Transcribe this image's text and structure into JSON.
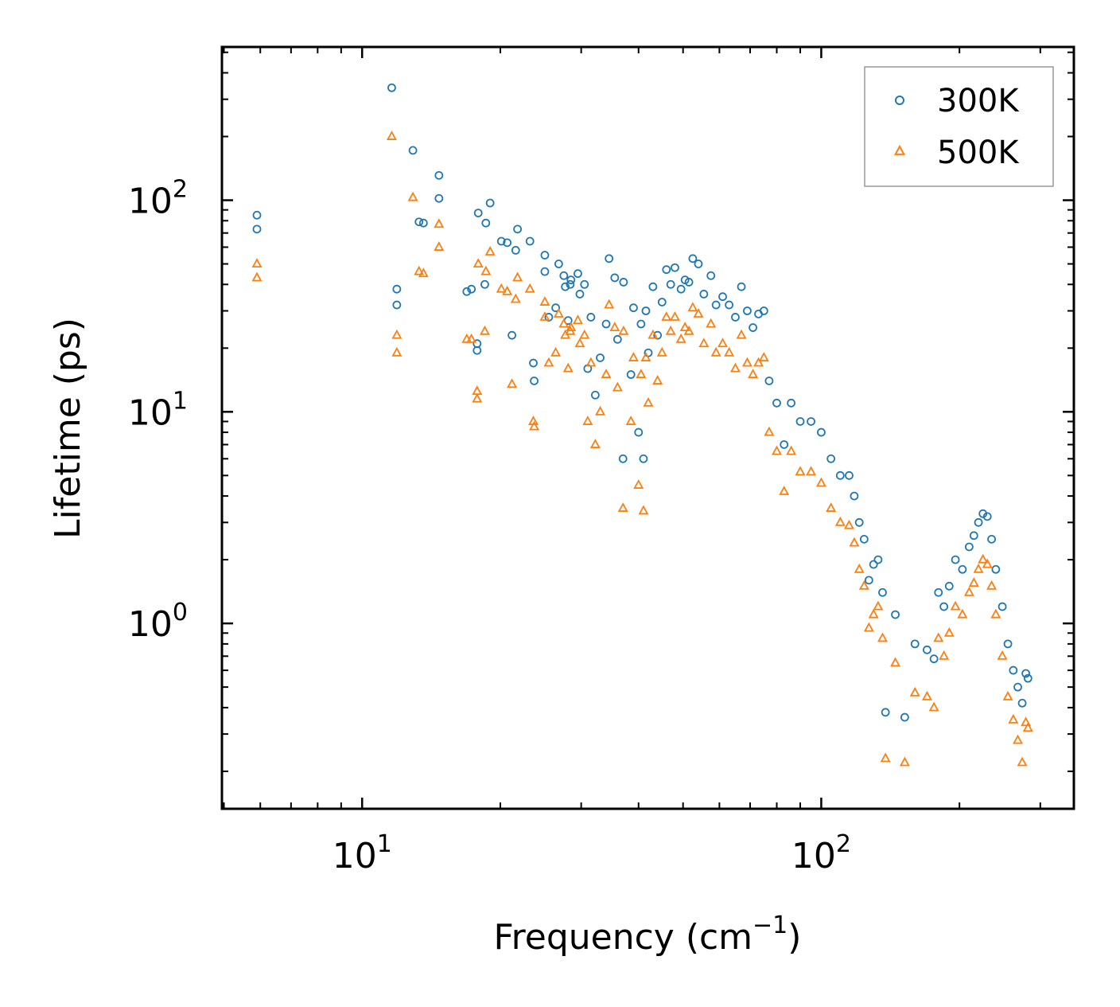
{
  "chart_data": {
    "type": "scatter",
    "title": "",
    "xlabel": "Frequency (cm",
    "xlabel_sup": "−1",
    "xlabel_close": ")",
    "ylabel": "Lifetime (ps)",
    "xscale": "log",
    "yscale": "log",
    "xlim": [
      4.95,
      355
    ],
    "ylim": [
      0.133,
      530
    ],
    "xticks": [
      {
        "base": "10",
        "exp": "1",
        "value": 10
      },
      {
        "base": "10",
        "exp": "2",
        "value": 100
      }
    ],
    "yticks": [
      {
        "base": "10",
        "exp": "0",
        "value": 1
      },
      {
        "base": "10",
        "exp": "1",
        "value": 10
      },
      {
        "base": "10",
        "exp": "2",
        "value": 100
      }
    ],
    "legend_position": "top-right",
    "series": [
      {
        "name": "300K",
        "marker": "circle",
        "color": "#1f77b4",
        "points": [
          [
            5.9,
            85
          ],
          [
            5.9,
            73
          ],
          [
            11.6,
            340
          ],
          [
            11.9,
            38
          ],
          [
            11.9,
            32
          ],
          [
            12.9,
            172
          ],
          [
            13.3,
            79
          ],
          [
            13.6,
            78
          ],
          [
            14.7,
            131
          ],
          [
            14.7,
            102
          ],
          [
            16.9,
            37
          ],
          [
            17.3,
            38
          ],
          [
            17.8,
            21
          ],
          [
            17.8,
            19.5
          ],
          [
            17.9,
            87
          ],
          [
            18.5,
            40
          ],
          [
            18.6,
            78
          ],
          [
            19.0,
            97
          ],
          [
            20.1,
            64
          ],
          [
            20.7,
            63
          ],
          [
            21.2,
            23
          ],
          [
            21.6,
            58
          ],
          [
            21.8,
            73
          ],
          [
            23.2,
            64
          ],
          [
            23.6,
            17
          ],
          [
            23.7,
            14
          ],
          [
            25.0,
            55
          ],
          [
            25.0,
            46
          ],
          [
            25.5,
            28
          ],
          [
            26.4,
            31
          ],
          [
            26.8,
            50
          ],
          [
            27.5,
            44
          ],
          [
            27.7,
            39
          ],
          [
            28.1,
            27
          ],
          [
            28.4,
            40
          ],
          [
            28.5,
            42
          ],
          [
            29.5,
            45
          ],
          [
            29.8,
            36
          ],
          [
            30.5,
            40
          ],
          [
            31.0,
            16
          ],
          [
            31.5,
            28
          ],
          [
            32.2,
            12
          ],
          [
            33.0,
            18
          ],
          [
            34.0,
            26
          ],
          [
            34.5,
            53
          ],
          [
            35.5,
            43
          ],
          [
            36.0,
            22
          ],
          [
            37.1,
            41
          ],
          [
            37.0,
            6
          ],
          [
            38.5,
            15
          ],
          [
            39.0,
            31
          ],
          [
            40.0,
            8
          ],
          [
            40.5,
            26
          ],
          [
            41.0,
            6
          ],
          [
            41.5,
            30
          ],
          [
            42.0,
            19
          ],
          [
            43.0,
            39
          ],
          [
            44.0,
            23
          ],
          [
            45.0,
            33
          ],
          [
            46.0,
            47
          ],
          [
            47.0,
            40
          ],
          [
            48.0,
            48
          ],
          [
            49.5,
            38
          ],
          [
            50.5,
            42
          ],
          [
            51.5,
            41
          ],
          [
            52.5,
            53
          ],
          [
            54.0,
            50
          ],
          [
            55.5,
            36
          ],
          [
            57.5,
            44
          ],
          [
            59.0,
            32
          ],
          [
            61.0,
            35
          ],
          [
            63.0,
            32
          ],
          [
            65.0,
            28
          ],
          [
            67.0,
            39
          ],
          [
            69.0,
            30
          ],
          [
            71.0,
            25
          ],
          [
            73.0,
            29
          ],
          [
            75.0,
            30
          ],
          [
            77.0,
            14
          ],
          [
            80.0,
            11
          ],
          [
            83.0,
            7
          ],
          [
            86.0,
            11
          ],
          [
            90.0,
            9
          ],
          [
            95.0,
            9
          ],
          [
            100.0,
            8
          ],
          [
            105.0,
            6
          ],
          [
            110.0,
            5
          ],
          [
            115.0,
            5
          ],
          [
            118.0,
            4
          ],
          [
            121.0,
            3
          ],
          [
            124.0,
            2.5
          ],
          [
            127.0,
            1.6
          ],
          [
            130.0,
            1.9
          ],
          [
            133.0,
            2.0
          ],
          [
            136.0,
            1.4
          ],
          [
            138.0,
            0.38
          ],
          [
            145.0,
            1.1
          ],
          [
            152.0,
            0.36
          ],
          [
            160.0,
            0.8
          ],
          [
            170.0,
            0.75
          ],
          [
            176.0,
            0.68
          ],
          [
            180.0,
            1.4
          ],
          [
            185.0,
            1.2
          ],
          [
            190.0,
            1.5
          ],
          [
            196.0,
            2.0
          ],
          [
            203.0,
            1.8
          ],
          [
            210.0,
            2.3
          ],
          [
            215.0,
            2.6
          ],
          [
            220.0,
            3.0
          ],
          [
            225.0,
            3.3
          ],
          [
            230.0,
            3.2
          ],
          [
            235.0,
            2.5
          ],
          [
            240.0,
            1.8
          ],
          [
            248.0,
            1.2
          ],
          [
            255.0,
            0.8
          ],
          [
            262.0,
            0.6
          ],
          [
            268.0,
            0.5
          ],
          [
            274.0,
            0.42
          ],
          [
            279.0,
            0.58
          ],
          [
            282.0,
            0.55
          ]
        ]
      },
      {
        "name": "500K",
        "marker": "triangle",
        "color": "#ff7f0e",
        "points": [
          [
            5.9,
            50
          ],
          [
            5.9,
            43
          ],
          [
            11.6,
            200
          ],
          [
            11.9,
            23
          ],
          [
            11.9,
            19
          ],
          [
            12.9,
            103
          ],
          [
            13.3,
            46
          ],
          [
            13.6,
            45
          ],
          [
            14.7,
            77
          ],
          [
            14.7,
            60
          ],
          [
            16.9,
            22
          ],
          [
            17.3,
            22
          ],
          [
            17.8,
            12.5
          ],
          [
            17.8,
            11.5
          ],
          [
            17.9,
            50
          ],
          [
            18.5,
            24
          ],
          [
            18.6,
            46
          ],
          [
            19.0,
            57
          ],
          [
            20.1,
            38
          ],
          [
            20.7,
            37
          ],
          [
            21.2,
            13.5
          ],
          [
            21.6,
            34
          ],
          [
            21.8,
            43
          ],
          [
            23.2,
            38
          ],
          [
            23.6,
            9
          ],
          [
            23.7,
            8.5
          ],
          [
            25.0,
            33
          ],
          [
            25.0,
            28
          ],
          [
            25.5,
            17
          ],
          [
            26.4,
            19
          ],
          [
            26.8,
            29
          ],
          [
            27.5,
            26
          ],
          [
            27.7,
            23
          ],
          [
            28.1,
            16
          ],
          [
            28.4,
            24
          ],
          [
            28.5,
            25
          ],
          [
            29.5,
            27
          ],
          [
            29.8,
            21
          ],
          [
            30.5,
            23
          ],
          [
            31.0,
            9
          ],
          [
            31.5,
            17
          ],
          [
            32.2,
            7
          ],
          [
            33.0,
            10
          ],
          [
            34.0,
            15
          ],
          [
            34.5,
            32
          ],
          [
            35.5,
            25
          ],
          [
            36.0,
            13
          ],
          [
            37.1,
            24
          ],
          [
            37.0,
            3.5
          ],
          [
            38.5,
            9
          ],
          [
            39.0,
            18
          ],
          [
            40.0,
            4.5
          ],
          [
            40.5,
            15
          ],
          [
            41.0,
            3.4
          ],
          [
            41.5,
            18
          ],
          [
            42.0,
            11
          ],
          [
            43.0,
            23
          ],
          [
            44.0,
            14
          ],
          [
            45.0,
            19
          ],
          [
            46.0,
            28
          ],
          [
            47.0,
            24
          ],
          [
            48.0,
            28
          ],
          [
            49.5,
            22
          ],
          [
            50.5,
            25
          ],
          [
            51.5,
            24
          ],
          [
            52.5,
            31
          ],
          [
            54.0,
            29
          ],
          [
            55.5,
            21
          ],
          [
            57.5,
            26
          ],
          [
            59.0,
            19
          ],
          [
            61.0,
            21
          ],
          [
            63.0,
            19
          ],
          [
            65.0,
            16
          ],
          [
            67.0,
            23
          ],
          [
            69.0,
            17
          ],
          [
            71.0,
            15
          ],
          [
            73.0,
            17
          ],
          [
            75.0,
            18
          ],
          [
            77.0,
            8
          ],
          [
            80.0,
            6.5
          ],
          [
            83.0,
            4.2
          ],
          [
            86.0,
            6.5
          ],
          [
            90.0,
            5.2
          ],
          [
            95.0,
            5.2
          ],
          [
            100.0,
            4.6
          ],
          [
            105.0,
            3.5
          ],
          [
            110.0,
            3.0
          ],
          [
            115.0,
            2.9
          ],
          [
            118.0,
            2.4
          ],
          [
            121.0,
            1.8
          ],
          [
            124.0,
            1.5
          ],
          [
            127.0,
            0.95
          ],
          [
            130.0,
            1.1
          ],
          [
            133.0,
            1.2
          ],
          [
            136.0,
            0.85
          ],
          [
            138.0,
            0.23
          ],
          [
            145.0,
            0.65
          ],
          [
            152.0,
            0.22
          ],
          [
            160.0,
            0.47
          ],
          [
            170.0,
            0.45
          ],
          [
            176.0,
            0.4
          ],
          [
            180.0,
            0.85
          ],
          [
            185.0,
            0.7
          ],
          [
            190.0,
            0.9
          ],
          [
            196.0,
            1.2
          ],
          [
            203.0,
            1.1
          ],
          [
            210.0,
            1.4
          ],
          [
            215.0,
            1.55
          ],
          [
            220.0,
            1.8
          ],
          [
            225.0,
            2.0
          ],
          [
            230.0,
            1.9
          ],
          [
            235.0,
            1.5
          ],
          [
            240.0,
            1.1
          ],
          [
            248.0,
            0.7
          ],
          [
            255.0,
            0.45
          ],
          [
            262.0,
            0.35
          ],
          [
            268.0,
            0.28
          ],
          [
            274.0,
            0.22
          ],
          [
            279.0,
            0.34
          ],
          [
            282.0,
            0.32
          ]
        ]
      }
    ]
  }
}
